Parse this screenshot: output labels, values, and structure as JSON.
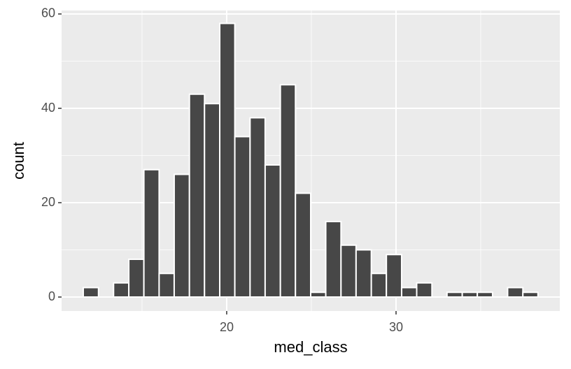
{
  "chart_data": {
    "type": "histogram",
    "xlabel": "med_class",
    "ylabel": "count",
    "bins": [
      11.53,
      12.43,
      13.32,
      14.22,
      15.11,
      16.01,
      16.9,
      17.8,
      18.69,
      19.59,
      20.48,
      21.38,
      22.27,
      23.17,
      24.06,
      24.96,
      25.85,
      26.75,
      27.64,
      28.54,
      29.43,
      30.33,
      31.22,
      32.12,
      33.01,
      33.91,
      34.8,
      35.7,
      36.59,
      37.49,
      38.38
    ],
    "values": [
      2,
      0,
      3,
      8,
      27,
      5,
      26,
      43,
      41,
      58,
      34,
      38,
      28,
      45,
      22,
      1,
      16,
      11,
      10,
      5,
      9,
      2,
      3,
      0,
      1,
      1,
      1,
      0,
      2,
      1
    ],
    "color": "#474747",
    "xlim": [
      10.25,
      39.67
    ],
    "ylim": [
      -2.96,
      60.74
    ],
    "xticks": [
      20,
      30
    ],
    "yticks": [
      0,
      20,
      40,
      60
    ],
    "grid": true
  }
}
